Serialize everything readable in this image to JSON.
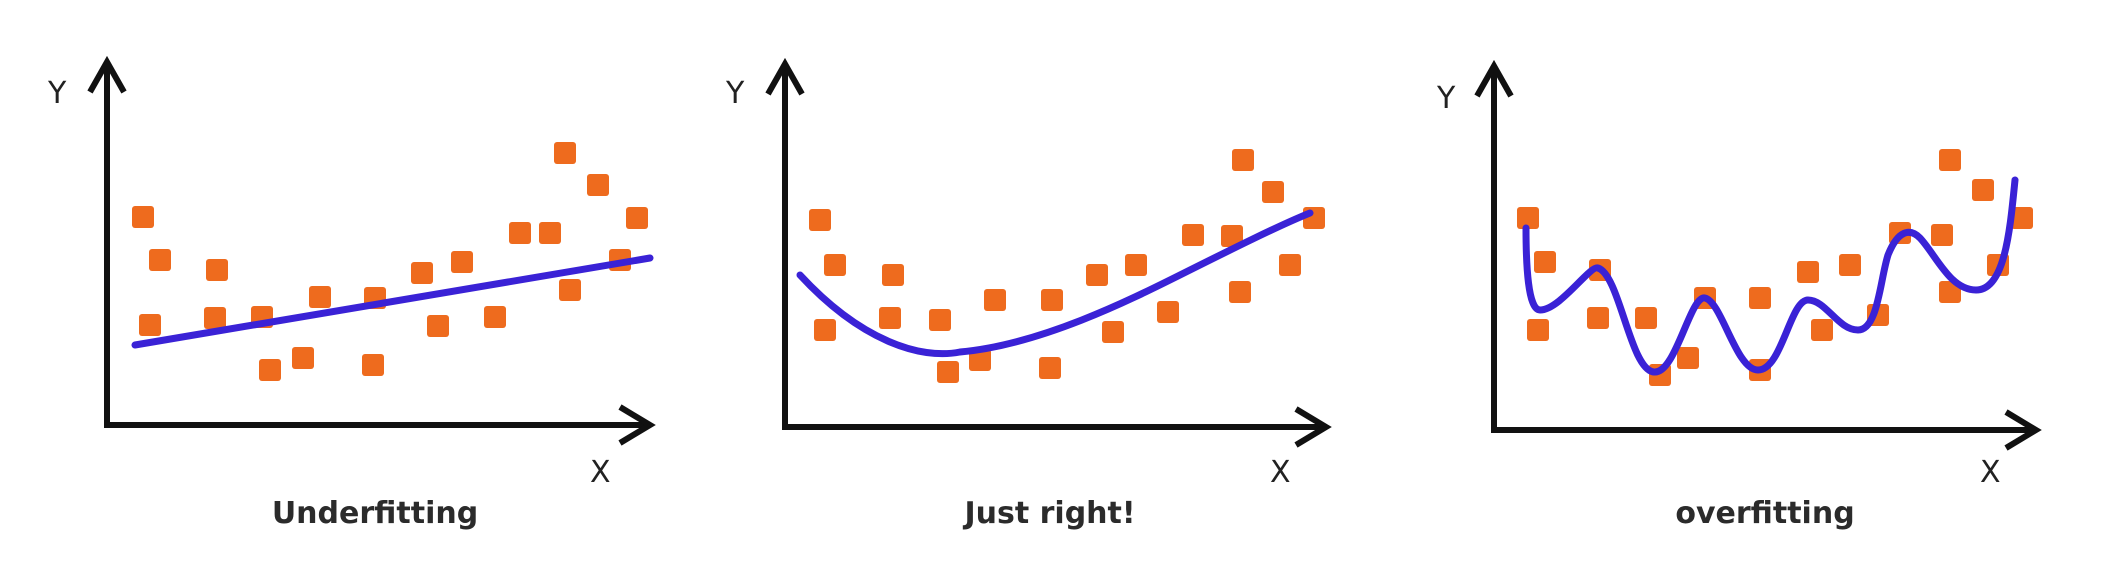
{
  "marker_color": "#ee6b1e",
  "curve_color": "#3a22d6",
  "axis_color": "#111111",
  "panels": [
    {
      "caption": "Underfitting",
      "x_label": "X",
      "y_label": "Y",
      "fit": "linear"
    },
    {
      "caption": "Just right!",
      "x_label": "X",
      "y_label": "Y",
      "fit": "quadratic"
    },
    {
      "caption": "overfitting",
      "x_label": "X",
      "y_label": "Y",
      "fit": "wiggly"
    }
  ]
}
